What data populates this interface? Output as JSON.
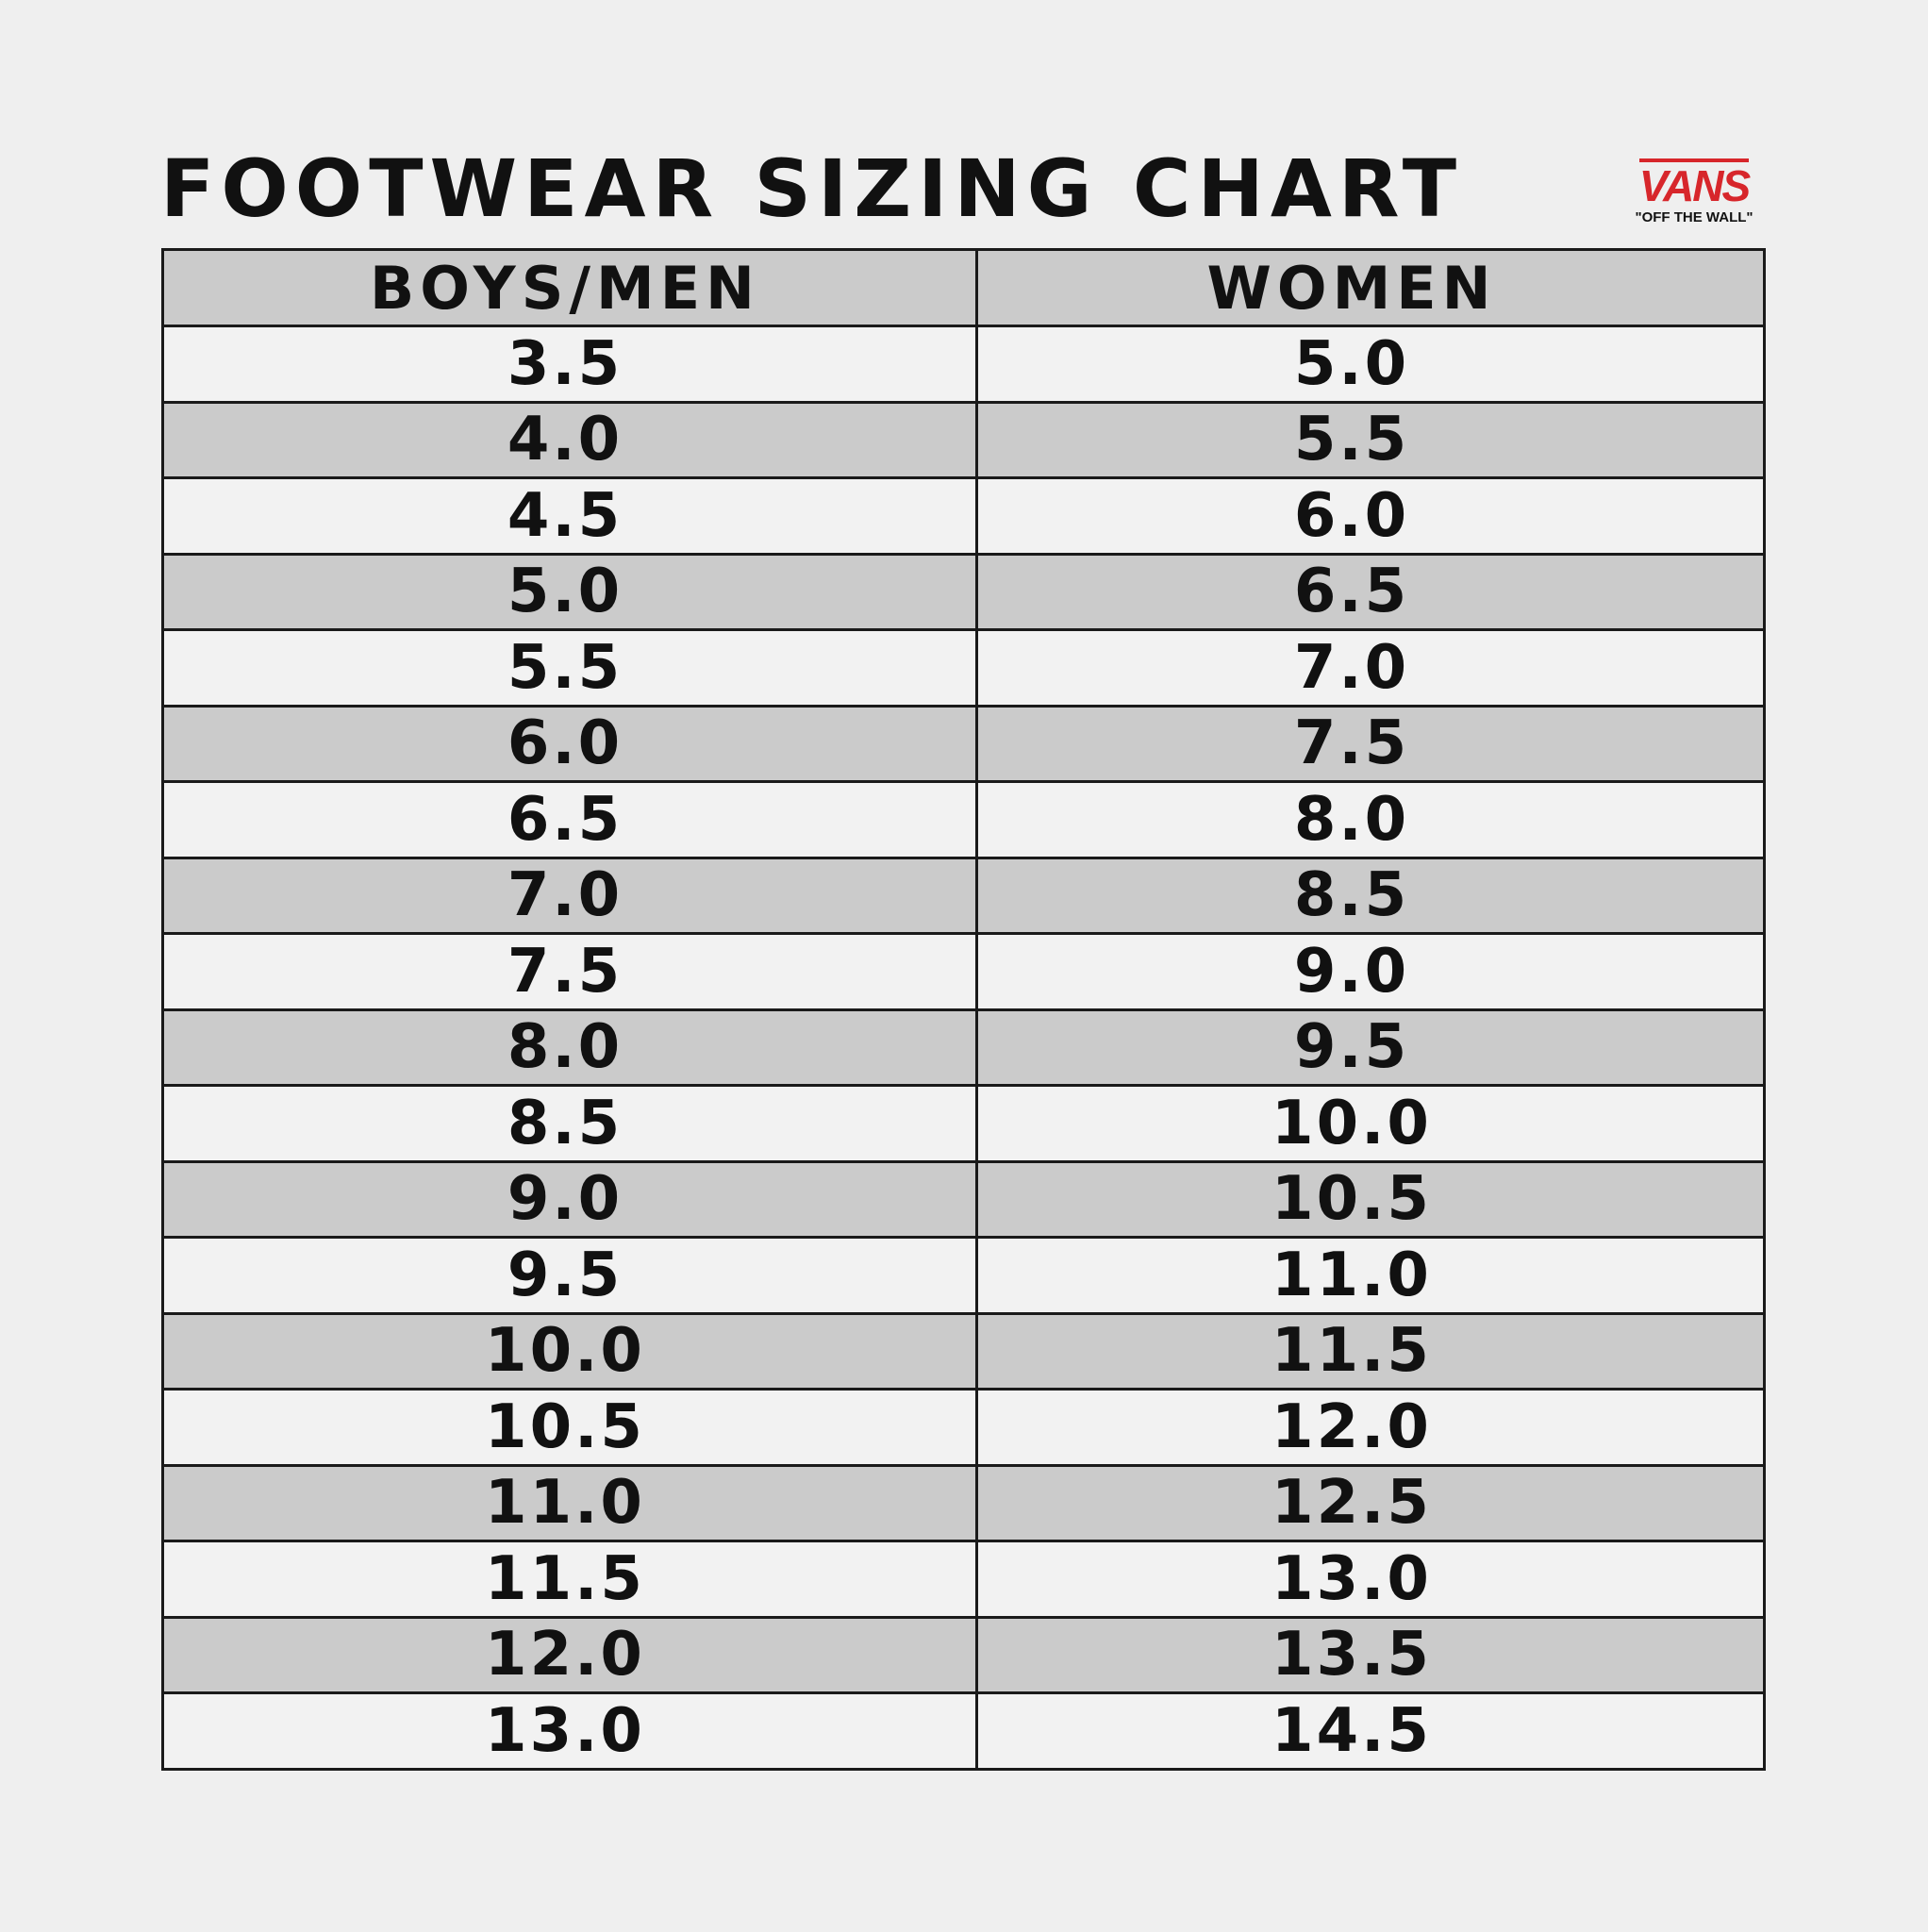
{
  "title": "FOOTWEAR SIZING CHART",
  "logo": {
    "brand": "VANS",
    "tagline": "\"OFF THE WALL\"",
    "color": "#d7262b"
  },
  "colors": {
    "background": "#efefef",
    "row_light": "#f2f2f2",
    "row_dark": "#cbcbcb",
    "header": "#cbcbcb"
  },
  "table": {
    "headers": [
      "BOYS/MEN",
      "WOMEN"
    ],
    "rows": [
      [
        "3.5",
        "5.0"
      ],
      [
        "4.0",
        "5.5"
      ],
      [
        "4.5",
        "6.0"
      ],
      [
        "5.0",
        "6.5"
      ],
      [
        "5.5",
        "7.0"
      ],
      [
        "6.0",
        "7.5"
      ],
      [
        "6.5",
        "8.0"
      ],
      [
        "7.0",
        "8.5"
      ],
      [
        "7.5",
        "9.0"
      ],
      [
        "8.0",
        "9.5"
      ],
      [
        "8.5",
        "10.0"
      ],
      [
        "9.0",
        "10.5"
      ],
      [
        "9.5",
        "11.0"
      ],
      [
        "10.0",
        "11.5"
      ],
      [
        "10.5",
        "12.0"
      ],
      [
        "11.0",
        "12.5"
      ],
      [
        "11.5",
        "13.0"
      ],
      [
        "12.0",
        "13.5"
      ],
      [
        "13.0",
        "14.5"
      ]
    ]
  }
}
